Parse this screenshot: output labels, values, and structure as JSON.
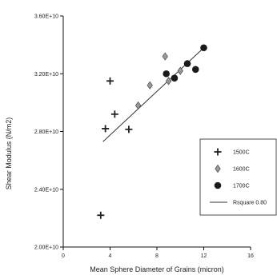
{
  "chart_data": {
    "type": "scatter",
    "title": "",
    "xlabel": "Mean Sphere Diameter of Grains (micron)",
    "ylabel": "Shear Modulus (N/m2)",
    "xlim": [
      0,
      16
    ],
    "ylim": [
      20000000000,
      36000000000
    ],
    "x_ticks": [
      {
        "value": 0,
        "label": "0"
      },
      {
        "value": 4,
        "label": "4"
      },
      {
        "value": 8,
        "label": "8"
      },
      {
        "value": 12,
        "label": "12"
      },
      {
        "value": 16,
        "label": "16"
      }
    ],
    "y_ticks": [
      {
        "value": 20000000000,
        "label": "2.00E+10"
      },
      {
        "value": 24000000000,
        "label": "2.40E+10"
      },
      {
        "value": 28000000000,
        "label": "2.80E+10"
      },
      {
        "value": 32000000000,
        "label": "3.20E+10"
      },
      {
        "value": 36000000000,
        "label": "3.60E+10"
      }
    ],
    "grid": false,
    "legend_position": "right",
    "series": [
      {
        "name": "1500C",
        "marker": "plus",
        "color": "#222222",
        "points": [
          [
            3.2,
            22200000000
          ],
          [
            3.6,
            28200000000
          ],
          [
            4.0,
            31500000000
          ],
          [
            4.4,
            29200000000
          ],
          [
            5.6,
            28150000000
          ]
        ]
      },
      {
        "name": "1600C",
        "marker": "diamond",
        "color": "#555555",
        "points": [
          [
            6.4,
            29800000000
          ],
          [
            7.4,
            31200000000
          ],
          [
            8.7,
            33200000000
          ],
          [
            9.0,
            31500000000
          ],
          [
            10.0,
            32200000000
          ]
        ]
      },
      {
        "name": "1700C",
        "marker": "circle",
        "color": "#1a1a1a",
        "points": [
          [
            8.8,
            32000000000
          ],
          [
            9.5,
            31700000000
          ],
          [
            10.6,
            32700000000
          ],
          [
            11.3,
            32300000000
          ],
          [
            12.0,
            33800000000
          ]
        ]
      }
    ],
    "trendline": {
      "name": "Rsquare 0.80",
      "color": "#333333",
      "from": [
        3.4,
        27300000000
      ],
      "to": [
        12.0,
        33800000000
      ]
    }
  }
}
